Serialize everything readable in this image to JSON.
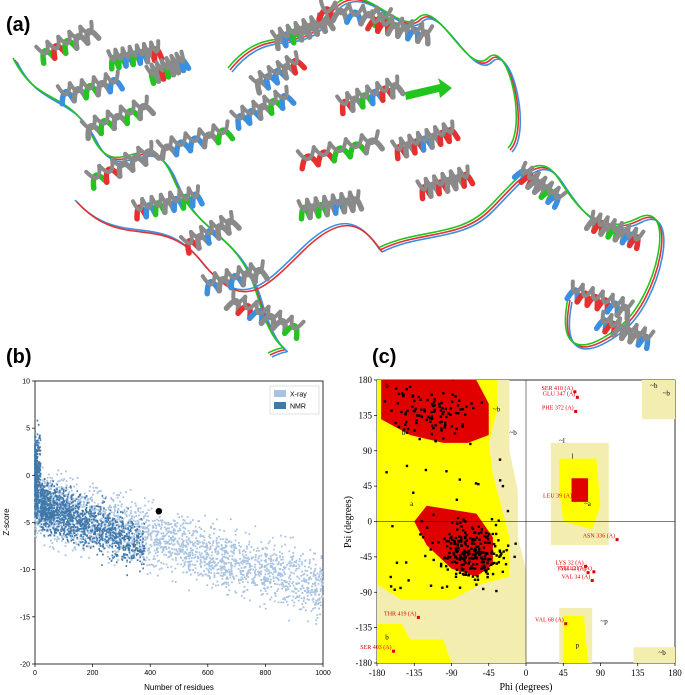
{
  "panels": {
    "a": "(a)",
    "b": "(b)",
    "c": "(c)"
  },
  "colors": {
    "helix_gray": "#8a8a8a",
    "seg_red": "#e63030",
    "seg_green": "#22c41e",
    "seg_blue": "#3a8fe0",
    "xray": "#a9c4e2",
    "nmr": "#3f78ab",
    "rama_red": "#e00000",
    "rama_yellow": "#ffff00",
    "rama_pale": "#f3eeb0",
    "label_red": "#dd0000"
  },
  "chart_data": [
    {
      "type": "scatter",
      "xlabel": "Number of residues",
      "ylabel": "Z-score",
      "xlim": [
        0,
        1000
      ],
      "ylim": [
        -20,
        10
      ],
      "x_ticks": [
        "0",
        "200",
        "400",
        "600",
        "800",
        "1000"
      ],
      "y_ticks": [
        "10",
        "5",
        "0",
        "-5",
        "-10",
        "-15",
        "-20"
      ],
      "legend_position": "top-right",
      "series": [
        {
          "name": "X-ray",
          "color": "#a9c4e2"
        },
        {
          "name": "NMR",
          "color": "#3f78ab"
        }
      ],
      "highlight_point": {
        "x": 430,
        "y": -3.8
      }
    },
    {
      "type": "scatter",
      "xlabel": "Phi (degrees)",
      "ylabel": "Psi (degrees)",
      "xlim": [
        -180,
        180
      ],
      "ylim": [
        -180,
        180
      ],
      "x_ticks": [
        "-180",
        "-135",
        "-90",
        "-45",
        "0",
        "45",
        "90",
        "135",
        "180"
      ],
      "y_ticks": [
        "180",
        "135",
        "90",
        "45",
        "0",
        "-45",
        "-90",
        "-135",
        "-180"
      ],
      "region_labels": [
        "b",
        "b",
        "a",
        "l",
        "p",
        "~b",
        "~b",
        "~l",
        "~a",
        "~p",
        "b",
        "~b",
        "~b",
        "~b"
      ],
      "residue_labels": [
        {
          "text": "SER 410 (A)",
          "phi": 59,
          "psi": 165
        },
        {
          "text": "GLU 347 (A)",
          "phi": 62,
          "psi": 158
        },
        {
          "text": "PHE 372 (A)",
          "phi": 60,
          "psi": 140
        },
        {
          "text": "LEU 39 (A)",
          "phi": 58,
          "psi": 28
        },
        {
          "text": "ASN 336 (A)",
          "phi": 110,
          "psi": -23
        },
        {
          "text": "LYS 32 (A)",
          "phi": 72,
          "psi": -57
        },
        {
          "text": "GLU 217 (A)",
          "phi": 82,
          "psi": -64
        },
        {
          "text": "TYR 43 (A)",
          "phi": 75,
          "psi": -65
        },
        {
          "text": "VAL 34 (A)",
          "phi": 80,
          "psi": -75
        },
        {
          "text": "THR 419 (A)",
          "phi": -130,
          "psi": -122
        },
        {
          "text": "VAL 68 (A)",
          "phi": 48,
          "psi": -130
        },
        {
          "text": "SER 403 (A)",
          "phi": -160,
          "psi": -165
        }
      ]
    }
  ]
}
